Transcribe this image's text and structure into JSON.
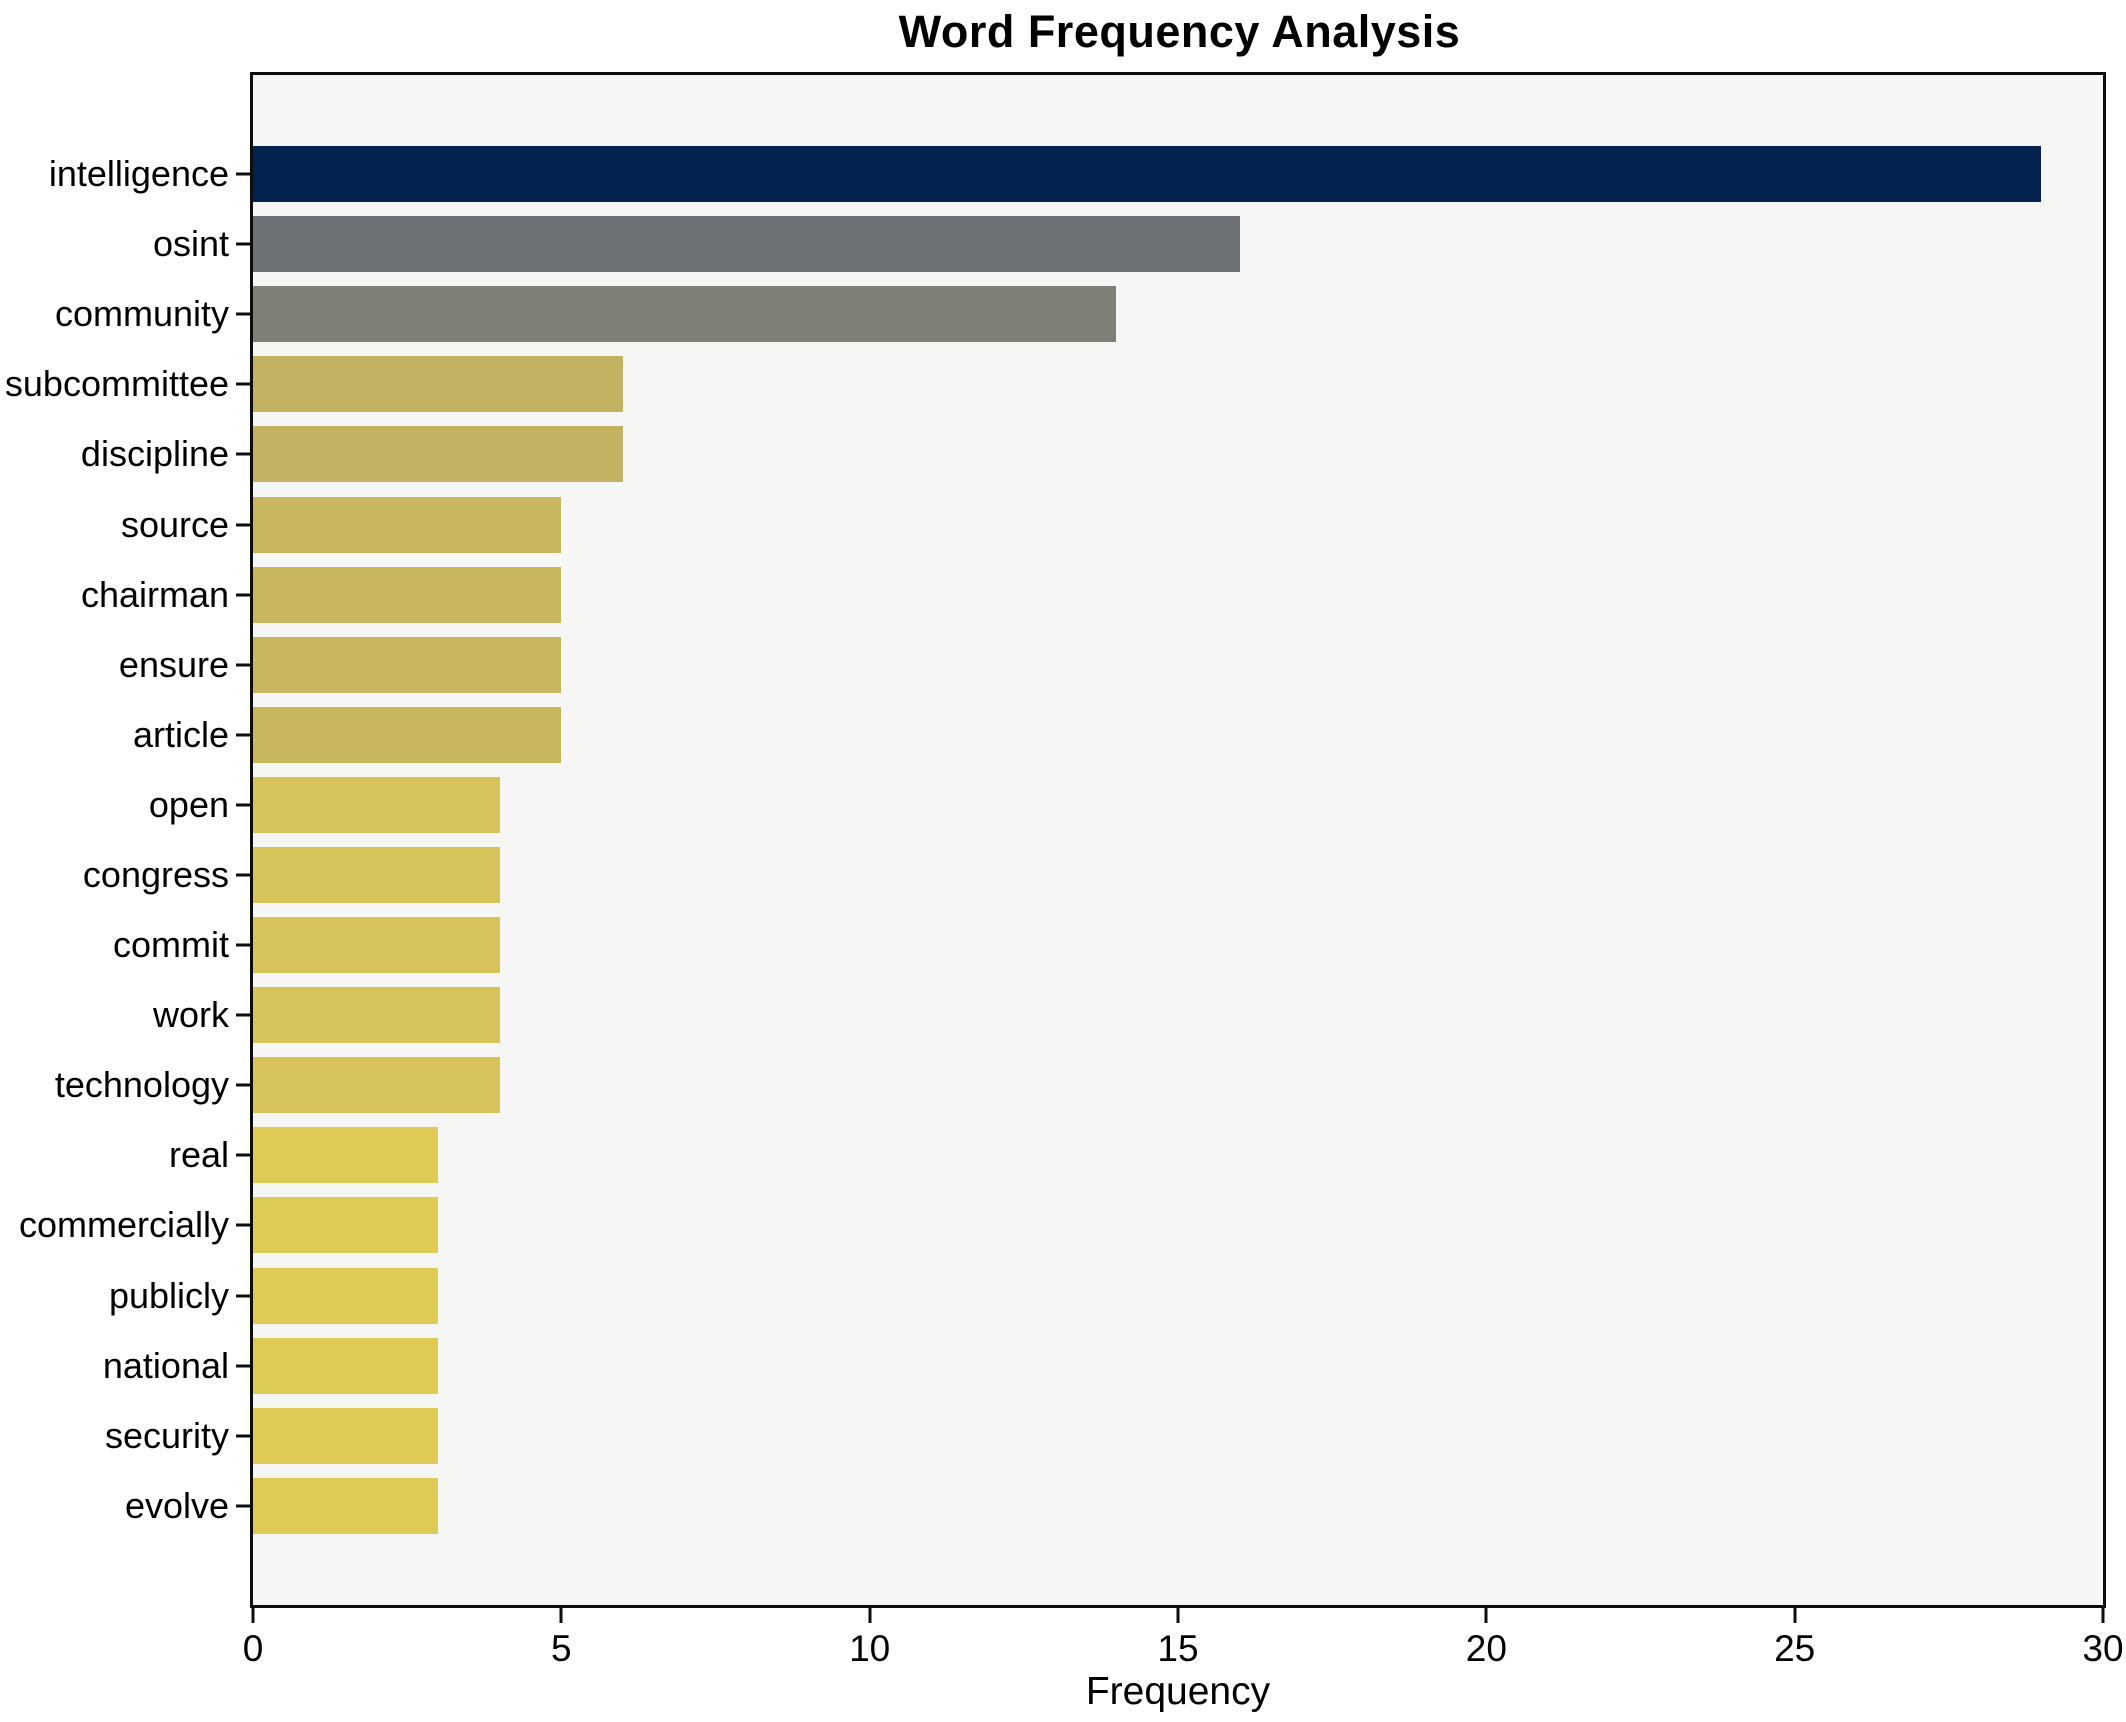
{
  "chart_data": {
    "type": "bar",
    "orientation": "horizontal",
    "title": "Word Frequency Analysis",
    "xlabel": "Frequency",
    "ylabel": "",
    "xlim": [
      0,
      30
    ],
    "x_ticks": [
      0,
      5,
      10,
      15,
      20,
      25,
      30
    ],
    "grid": false,
    "legend": false,
    "background": {
      "figure": "#ffffff",
      "plot": "#f6f6f4",
      "spine": "#0d0d0d"
    },
    "categories": [
      "intelligence",
      "osint",
      "community",
      "subcommittee",
      "discipline",
      "source",
      "chairman",
      "ensure",
      "article",
      "open",
      "congress",
      "commit",
      "work",
      "technology",
      "real",
      "commercially",
      "publicly",
      "national",
      "security",
      "evolve"
    ],
    "values": [
      29,
      16,
      14,
      6,
      6,
      5,
      5,
      5,
      5,
      4,
      4,
      4,
      4,
      4,
      3,
      3,
      3,
      3,
      3,
      3
    ],
    "bar_colors": [
      "#03234e",
      "#6e7175",
      "#7e8076",
      "#c3b262",
      "#c3b262",
      "#c9b75f",
      "#c9b75f",
      "#c9b75f",
      "#c9b75f",
      "#d6c45a",
      "#d6c45a",
      "#d6c45a",
      "#d6c45a",
      "#d6c45a",
      "#ddcb55",
      "#ddcb55",
      "#ddcb55",
      "#ddcb55",
      "#ddcb55",
      "#ddcb55"
    ]
  }
}
